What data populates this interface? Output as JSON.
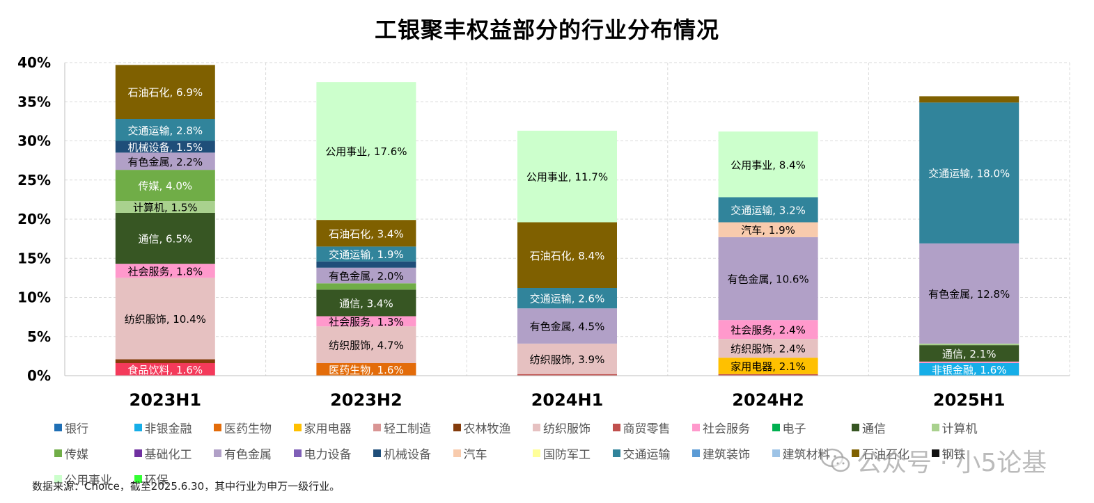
{
  "chart_data": {
    "type": "bar",
    "stacked": true,
    "title": "工银聚丰权益部分的行业分布情况",
    "categories": [
      "2023H1",
      "2023H2",
      "2024H1",
      "2024H2",
      "2025H1"
    ],
    "ylim": [
      0,
      40
    ],
    "yticks": [
      "0%",
      "5%",
      "10%",
      "15%",
      "20%",
      "25%",
      "30%",
      "35%",
      "40%"
    ],
    "grid": true,
    "legend_position": "bottom",
    "industries": [
      {
        "name": "银行",
        "color": "#1f6fb5"
      },
      {
        "name": "非银金融",
        "color": "#16aee8"
      },
      {
        "name": "医药生物",
        "color": "#e36c0a"
      },
      {
        "name": "家用电器",
        "color": "#ffc000"
      },
      {
        "name": "轻工制造",
        "color": "#d99594"
      },
      {
        "name": "农林牧渔",
        "color": "#843c0c"
      },
      {
        "name": "纺织服饰",
        "color": "#e6c1c1"
      },
      {
        "name": "商贸零售",
        "color": "#c0504d"
      },
      {
        "name": "社会服务",
        "color": "#ff99cc"
      },
      {
        "name": "电子",
        "color": "#00b050"
      },
      {
        "name": "通信",
        "color": "#375623"
      },
      {
        "name": "计算机",
        "color": "#a9d18e"
      },
      {
        "name": "传媒",
        "color": "#70ad47"
      },
      {
        "name": "基础化工",
        "color": "#7030a0"
      },
      {
        "name": "有色金属",
        "color": "#b1a0c7"
      },
      {
        "name": "电力设备",
        "color": "#7f5fb7"
      },
      {
        "name": "机械设备",
        "color": "#1f4e79"
      },
      {
        "name": "汽车",
        "color": "#f8cbad"
      },
      {
        "name": "国防军工",
        "color": "#ffff99"
      },
      {
        "name": "交通运输",
        "color": "#31849b"
      },
      {
        "name": "建筑装饰",
        "color": "#5b9bd5"
      },
      {
        "name": "建筑材料",
        "color": "#9dc3e6"
      },
      {
        "name": "石油石化",
        "color": "#7f6000"
      },
      {
        "name": "钢铁",
        "color": "#111111"
      },
      {
        "name": "公用事业",
        "color": "#ccffcc"
      },
      {
        "name": "环保",
        "color": "#33ff33"
      }
    ],
    "series_by_period": [
      [
        {
          "industry": "食品饮料",
          "value": 1.6,
          "color": "#f43a5b",
          "label": "食品饮料, 1.6%"
        },
        {
          "industry": "农林牧渔",
          "value": 0.5,
          "label": ""
        },
        {
          "industry": "纺织服饰",
          "value": 10.4,
          "label": "纺织服饰, 10.4%"
        },
        {
          "industry": "社会服务",
          "value": 1.8,
          "label": "社会服务, 1.8%"
        },
        {
          "industry": "通信",
          "value": 6.5,
          "label": "通信, 6.5%"
        },
        {
          "industry": "计算机",
          "value": 1.5,
          "label": "计算机, 1.5%"
        },
        {
          "industry": "传媒",
          "value": 4.0,
          "label": "传媒, 4.0%"
        },
        {
          "industry": "有色金属",
          "value": 2.2,
          "label": "有色金属, 2.2%"
        },
        {
          "industry": "机械设备",
          "value": 1.5,
          "label": "机械设备, 1.5%"
        },
        {
          "industry": "交通运输",
          "value": 2.8,
          "label": "交通运输, 2.8%"
        },
        {
          "industry": "石油石化",
          "value": 6.9,
          "label": "石油石化, 6.9%"
        }
      ],
      [
        {
          "industry": "医药生物",
          "value": 1.6,
          "label": "医药生物, 1.6%"
        },
        {
          "industry": "纺织服饰",
          "value": 4.7,
          "label": "纺织服饰, 4.7%"
        },
        {
          "industry": "社会服务",
          "value": 1.3,
          "label": "社会服务, 1.3%"
        },
        {
          "industry": "通信",
          "value": 3.4,
          "label": "通信, 3.4%"
        },
        {
          "industry": "传媒",
          "value": 0.8,
          "label": ""
        },
        {
          "industry": "有色金属",
          "value": 2.0,
          "label": "有色金属, 2.0%"
        },
        {
          "industry": "机械设备",
          "value": 0.8,
          "label": ""
        },
        {
          "industry": "交通运输",
          "value": 1.9,
          "label": "交通运输, 1.9%"
        },
        {
          "industry": "石油石化",
          "value": 3.4,
          "label": "石油石化, 3.4%"
        },
        {
          "industry": "公用事业",
          "value": 17.6,
          "label": "公用事业, 17.6%"
        }
      ],
      [
        {
          "industry": "商贸零售",
          "value": 0.2,
          "label": ""
        },
        {
          "industry": "纺织服饰",
          "value": 3.9,
          "label": "纺织服饰, 3.9%"
        },
        {
          "industry": "有色金属",
          "value": 4.5,
          "label": "有色金属, 4.5%"
        },
        {
          "industry": "交通运输",
          "value": 2.6,
          "label": "交通运输, 2.6%"
        },
        {
          "industry": "石油石化",
          "value": 8.4,
          "label": "石油石化, 8.4%"
        },
        {
          "industry": "公用事业",
          "value": 11.7,
          "label": "公用事业, 11.7%"
        }
      ],
      [
        {
          "industry": "商贸零售",
          "value": 0.2,
          "label": ""
        },
        {
          "industry": "家用电器",
          "value": 2.1,
          "label": "家用电器, 2.1%"
        },
        {
          "industry": "纺织服饰",
          "value": 2.4,
          "label": "纺织服饰, 2.4%"
        },
        {
          "industry": "社会服务",
          "value": 2.4,
          "label": "社会服务, 2.4%"
        },
        {
          "industry": "有色金属",
          "value": 10.6,
          "label": "有色金属, 10.6%"
        },
        {
          "industry": "汽车",
          "value": 1.9,
          "label": "汽车, 1.9%"
        },
        {
          "industry": "交通运输",
          "value": 3.2,
          "label": "交通运输, 3.2%"
        },
        {
          "industry": "公用事业",
          "value": 8.4,
          "label": "公用事业, 8.4%"
        }
      ],
      [
        {
          "industry": "非银金融",
          "value": 1.6,
          "label": "非银金融, 1.6%"
        },
        {
          "industry": "社会服务",
          "value": 0.2,
          "label": ""
        },
        {
          "industry": "通信",
          "value": 2.1,
          "label": "通信, 2.1%"
        },
        {
          "industry": "计算机",
          "value": 0.2,
          "label": ""
        },
        {
          "industry": "有色金属",
          "value": 12.8,
          "label": "有色金属, 12.8%"
        },
        {
          "industry": "交通运输",
          "value": 18.0,
          "label": "交通运输, 18.0%"
        },
        {
          "industry": "石油石化",
          "value": 0.8,
          "label": ""
        }
      ]
    ]
  },
  "footer": {
    "source_note": "数据来源：Choice，截至2025.6.30，其中行业为申万一级行业。"
  },
  "watermark": {
    "text": "公众号 · 小5论基"
  }
}
